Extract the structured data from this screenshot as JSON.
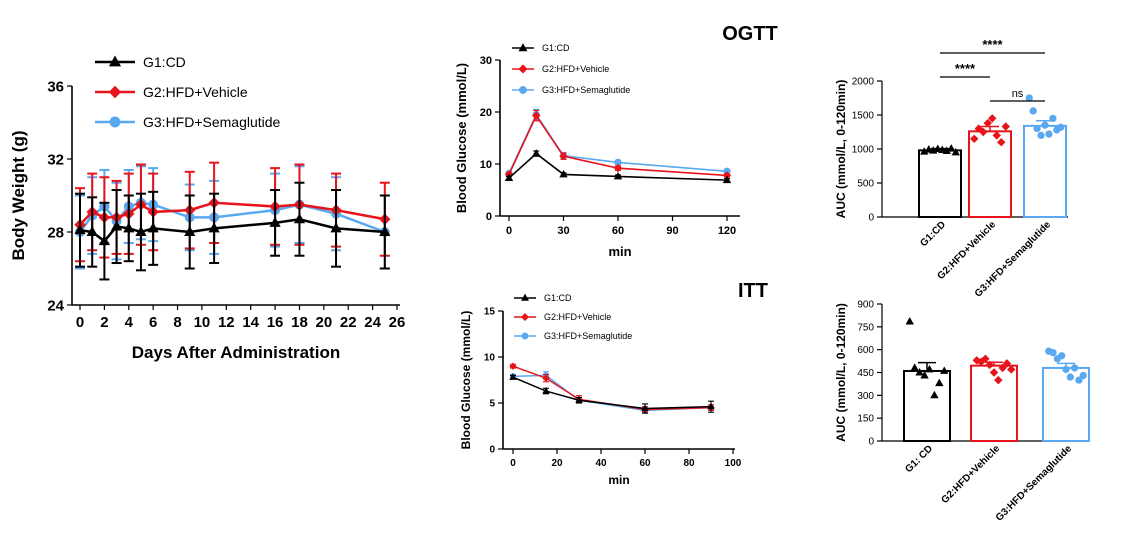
{
  "headings": {
    "ogtt": "OGTT",
    "itt": "ITT"
  },
  "colors": {
    "g1": "#000000",
    "g2": "#e8141b",
    "g3": "#5aa8f0"
  },
  "chart_data": [
    {
      "id": "bw",
      "type": "line",
      "title": "",
      "xlabel": "Days After Administration",
      "ylabel": "Body Weight (g)",
      "xlim": [
        0,
        26
      ],
      "ylim": [
        24,
        36
      ],
      "xticks": [
        0,
        2,
        4,
        6,
        8,
        10,
        12,
        14,
        16,
        18,
        20,
        22,
        24,
        26
      ],
      "yticks": [
        24,
        28,
        32,
        36
      ],
      "legend": "top-left",
      "series": [
        {
          "name": "G1:CD",
          "color": "g1",
          "marker": "triangle",
          "x": [
            0,
            1,
            2,
            3,
            4,
            5,
            6,
            9,
            11,
            16,
            18,
            21,
            25
          ],
          "y": [
            28.1,
            28.0,
            27.5,
            28.3,
            28.2,
            28.0,
            28.2,
            28.0,
            28.2,
            28.5,
            28.7,
            28.2,
            28.0
          ],
          "err": [
            2.0,
            1.9,
            2.1,
            2.0,
            1.8,
            2.1,
            2.0,
            2.0,
            1.9,
            1.8,
            2.0,
            2.1,
            2.0
          ]
        },
        {
          "name": "G2:HFD+Vehicle",
          "color": "g2",
          "marker": "diamond",
          "x": [
            0,
            1,
            2,
            3,
            4,
            5,
            6,
            9,
            11,
            16,
            18,
            21,
            25
          ],
          "y": [
            28.4,
            29.1,
            28.8,
            28.8,
            29.0,
            29.5,
            29.1,
            29.2,
            29.6,
            29.4,
            29.5,
            29.2,
            28.7
          ],
          "err": [
            2.0,
            2.1,
            2.2,
            2.0,
            2.2,
            2.2,
            2.1,
            2.1,
            2.2,
            2.1,
            2.2,
            2.0,
            2.0
          ]
        },
        {
          "name": "G3:HFD+Semaglutide",
          "color": "g3",
          "marker": "circle",
          "x": [
            0,
            1,
            2,
            3,
            4,
            5,
            6,
            9,
            11,
            16,
            18,
            21,
            25
          ],
          "y": [
            28.0,
            28.9,
            29.4,
            28.6,
            29.4,
            29.6,
            29.5,
            28.8,
            28.8,
            29.2,
            29.5,
            29.0,
            28.0
          ],
          "err": [
            2.0,
            2.1,
            2.0,
            2.1,
            2.0,
            2.0,
            2.0,
            1.8,
            2.0,
            2.0,
            2.1,
            2.0,
            2.0
          ]
        }
      ]
    },
    {
      "id": "ogtt",
      "type": "line",
      "xlabel": "min",
      "ylabel": "Blood Glucose (mmol/L)",
      "xlim": [
        0,
        120
      ],
      "ylim": [
        0,
        30
      ],
      "xticks": [
        0,
        30,
        60,
        90,
        120
      ],
      "yticks": [
        0,
        10,
        20,
        30
      ],
      "legend": "top-left",
      "series": [
        {
          "name": "G1:CD",
          "color": "g1",
          "marker": "triangle",
          "x": [
            0,
            15,
            30,
            60,
            120
          ],
          "y": [
            7.3,
            12.0,
            8.0,
            7.6,
            6.9
          ],
          "err": [
            0.3,
            0.5,
            0.3,
            0.3,
            0.3
          ]
        },
        {
          "name": "G2:HFD+Vehicle",
          "color": "g2",
          "marker": "diamond",
          "x": [
            0,
            15,
            30,
            60,
            120
          ],
          "y": [
            8.0,
            19.3,
            11.5,
            9.2,
            7.8
          ],
          "err": [
            0.3,
            1.0,
            0.6,
            0.4,
            0.3
          ]
        },
        {
          "name": "G3:HFD+Semaglutide",
          "color": "g3",
          "marker": "circle",
          "x": [
            0,
            15,
            30,
            60,
            120
          ],
          "y": [
            8.2,
            19.5,
            11.6,
            10.3,
            8.6
          ],
          "err": [
            0.3,
            1.0,
            0.6,
            0.4,
            0.3
          ]
        }
      ]
    },
    {
      "id": "ogtt_auc",
      "type": "bar",
      "ylabel": "AUC (mmol/L, 0-120min)",
      "ylim": [
        0,
        2000
      ],
      "yticks": [
        0,
        500,
        1000,
        1500,
        2000
      ],
      "categories": [
        "G1:CD",
        "G2:HFD+Vehicle",
        "G3:HFD+Semaglutide"
      ],
      "colors": [
        "g1",
        "g2",
        "g3"
      ],
      "markers": [
        "triangle",
        "diamond",
        "circle"
      ],
      "values": [
        980,
        1260,
        1340
      ],
      "err": [
        25,
        70,
        75
      ],
      "points": [
        [
          960,
          990,
          975,
          1000,
          985,
          970,
          1005,
          950
        ],
        [
          1150,
          1300,
          1250,
          1380,
          1450,
          1200,
          1100,
          1330
        ],
        [
          1750,
          1560,
          1300,
          1200,
          1350,
          1220,
          1450,
          1280,
          1320
        ]
      ],
      "significance": [
        {
          "from": 0,
          "to": 2,
          "label": "****",
          "level": 2
        },
        {
          "from": 0,
          "to": 1,
          "label": "****",
          "level": 1
        },
        {
          "from": 1,
          "to": 2,
          "label": "ns",
          "level": 0
        }
      ]
    },
    {
      "id": "itt",
      "type": "line",
      "xlabel": "min",
      "ylabel": "Blood Glucose (mmol/L)",
      "xlim": [
        0,
        100
      ],
      "ylim": [
        0,
        15
      ],
      "xticks": [
        0,
        20,
        40,
        60,
        80,
        100
      ],
      "yticks": [
        0,
        5,
        10,
        15
      ],
      "legend": "top-left",
      "series": [
        {
          "name": "G1:CD",
          "color": "g1",
          "marker": "triangle",
          "x": [
            0,
            15,
            30,
            60,
            90
          ],
          "y": [
            7.8,
            6.3,
            5.3,
            4.4,
            4.6
          ],
          "err": [
            0.2,
            0.3,
            0.3,
            0.5,
            0.6
          ]
        },
        {
          "name": "G2:HFD+Vehicle",
          "color": "g2",
          "marker": "diamond",
          "x": [
            0,
            15,
            30,
            60,
            90
          ],
          "y": [
            9.0,
            7.7,
            5.4,
            4.3,
            4.5
          ],
          "err": [
            0.2,
            0.4,
            0.4,
            0.3,
            0.3
          ]
        },
        {
          "name": "G3:HFD+Semaglutide",
          "color": "g3",
          "marker": "circle",
          "x": [
            0,
            15,
            30,
            60,
            90
          ],
          "y": [
            7.9,
            8.0,
            5.3,
            4.2,
            4.5
          ],
          "err": [
            0.2,
            0.4,
            0.3,
            0.3,
            0.3
          ]
        }
      ]
    },
    {
      "id": "itt_auc",
      "type": "bar",
      "ylabel": "AUC (mmol/L, 0-120min)",
      "ylim": [
        0,
        900
      ],
      "yticks": [
        0,
        150,
        300,
        450,
        600,
        750,
        900
      ],
      "categories": [
        "G1: CD",
        "G2:HFD+Vehicle",
        "G3:HFD+Semaglutide"
      ],
      "colors": [
        "g1",
        "g2",
        "g3"
      ],
      "markers": [
        "triangle",
        "diamond",
        "circle"
      ],
      "values": [
        460,
        495,
        480
      ],
      "err": [
        55,
        22,
        30
      ],
      "points": [
        [
          785,
          480,
          450,
          430,
          470,
          300,
          380,
          460
        ],
        [
          530,
          520,
          540,
          500,
          450,
          400,
          480,
          510,
          470
        ],
        [
          590,
          580,
          540,
          560,
          470,
          420,
          480,
          400,
          430
        ]
      ],
      "significance": []
    }
  ]
}
